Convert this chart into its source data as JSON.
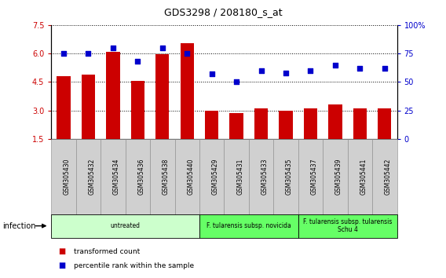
{
  "title": "GDS3298 / 208180_s_at",
  "samples": [
    "GSM305430",
    "GSM305432",
    "GSM305434",
    "GSM305436",
    "GSM305438",
    "GSM305440",
    "GSM305429",
    "GSM305431",
    "GSM305433",
    "GSM305435",
    "GSM305437",
    "GSM305439",
    "GSM305441",
    "GSM305442"
  ],
  "bar_values": [
    4.8,
    4.9,
    6.1,
    4.55,
    5.95,
    6.55,
    3.0,
    2.85,
    3.1,
    3.0,
    3.1,
    3.3,
    3.1,
    3.1
  ],
  "dot_values": [
    75,
    75,
    80,
    68,
    80,
    75,
    57,
    50,
    60,
    58,
    60,
    65,
    62,
    62
  ],
  "bar_color": "#cc0000",
  "dot_color": "#0000cc",
  "ylim_left": [
    1.5,
    7.5
  ],
  "ylim_right": [
    0,
    100
  ],
  "yticks_left": [
    1.5,
    3.0,
    4.5,
    6.0,
    7.5
  ],
  "yticks_right": [
    0,
    25,
    50,
    75,
    100
  ],
  "groups": [
    {
      "label": "untreated",
      "start": 0,
      "end": 5,
      "color": "#ccffcc"
    },
    {
      "label": "F. tularensis subsp. novicida",
      "start": 6,
      "end": 9,
      "color": "#66ff66"
    },
    {
      "label": "F. tularensis subsp. tularensis\nSchu 4",
      "start": 10,
      "end": 13,
      "color": "#66ff66"
    }
  ],
  "infection_label": "infection",
  "legend_bar_label": "transformed count",
  "legend_dot_label": "percentile rank within the sample",
  "bar_color_legend": "#cc0000",
  "dot_color_legend": "#0000cc",
  "tick_label_color_left": "#cc0000",
  "tick_label_color_right": "#0000cc",
  "tick_bg_color": "#d0d0d0",
  "sep_color": "#888888"
}
